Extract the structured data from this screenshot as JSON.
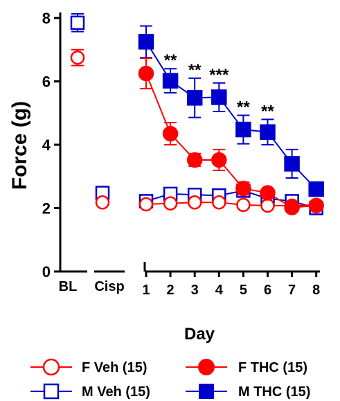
{
  "chart_data": {
    "type": "line",
    "ylabel": "Force (g)",
    "xlabel": "Day",
    "ylim": [
      0,
      8
    ],
    "yticks": [
      0,
      2,
      4,
      6,
      8
    ],
    "pre_categories": [
      "BL",
      "Cisp"
    ],
    "x": [
      1,
      2,
      3,
      4,
      5,
      6,
      7,
      8
    ],
    "colors": {
      "female": "#ff0000",
      "male": "#0000cc"
    },
    "series": [
      {
        "name": "F Veh (15)",
        "marker": "circle-open",
        "color": "#ff0000",
        "pre": [
          6.75,
          2.18
        ],
        "pre_err": [
          0.25,
          0.08
        ],
        "values": [
          2.12,
          2.15,
          2.18,
          2.18,
          2.1,
          2.08,
          2.08,
          2.1
        ],
        "errors": [
          0.08,
          0.06,
          0.06,
          0.06,
          0.06,
          0.06,
          0.06,
          0.06
        ]
      },
      {
        "name": "F THC (15)",
        "marker": "circle-filled",
        "color": "#ff0000",
        "pre": [],
        "pre_err": [],
        "values": [
          6.25,
          4.35,
          3.52,
          3.52,
          2.62,
          2.48,
          2.02,
          2.08
        ],
        "errors": [
          0.48,
          0.35,
          0.2,
          0.33,
          0.2,
          0.1,
          0.08,
          0.08
        ]
      },
      {
        "name": "M Veh (15)",
        "marker": "square-open",
        "color": "#0000cc",
        "pre": [
          7.85,
          2.48
        ],
        "pre_err": [
          0.28,
          0.1
        ],
        "values": [
          2.22,
          2.45,
          2.42,
          2.4,
          2.55,
          2.3,
          2.22,
          2.0
        ],
        "errors": [
          0.12,
          0.1,
          0.1,
          0.1,
          0.15,
          0.12,
          0.12,
          0.12
        ]
      },
      {
        "name": "M THC (15)",
        "marker": "square-filled",
        "color": "#0000cc",
        "pre": [],
        "pre_err": [],
        "values": [
          7.25,
          6.02,
          5.48,
          5.5,
          4.48,
          4.4,
          3.4,
          2.6
        ],
        "errors": [
          0.5,
          0.38,
          0.62,
          0.45,
          0.45,
          0.4,
          0.45,
          0.15
        ]
      }
    ],
    "annotations": [
      {
        "x": 2,
        "text": "**"
      },
      {
        "x": 3,
        "text": "**"
      },
      {
        "x": 4,
        "text": "***"
      },
      {
        "x": 5,
        "text": "**"
      },
      {
        "x": 6,
        "text": "**"
      }
    ]
  }
}
